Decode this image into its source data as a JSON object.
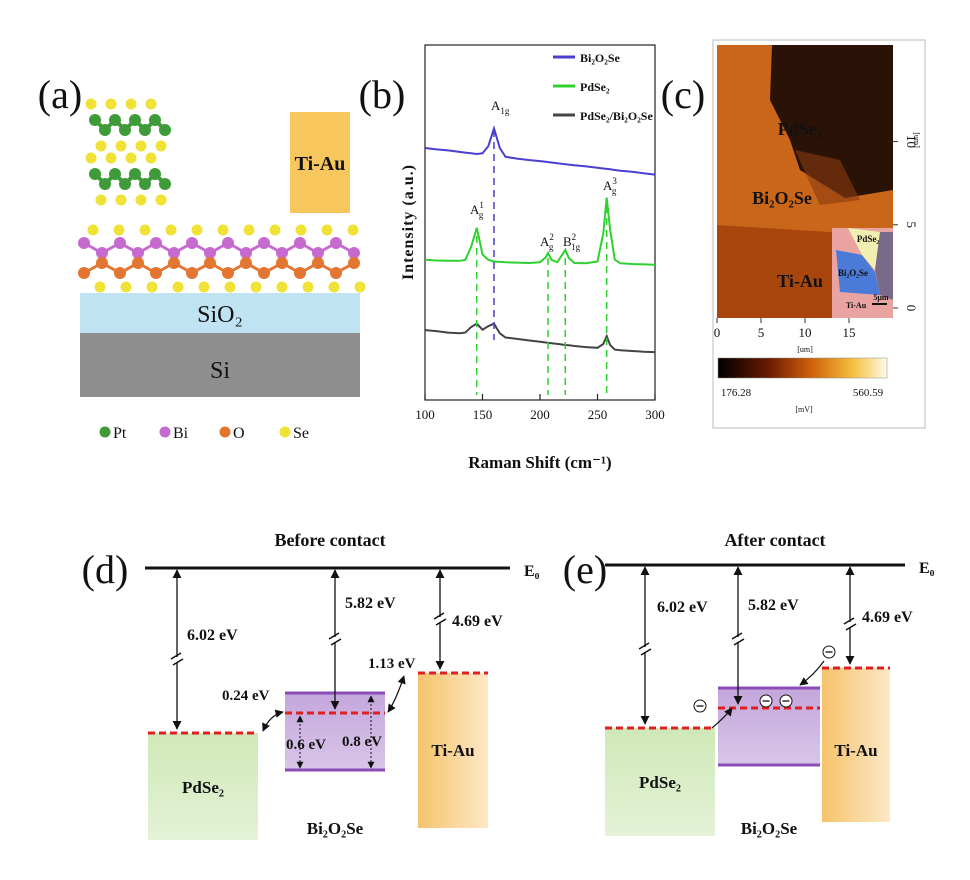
{
  "panels": {
    "a": {
      "label": "(a)",
      "electrode": "Ti-Au",
      "layers": [
        "SiO₂",
        "Si"
      ],
      "legend": [
        {
          "name": "Pt",
          "color": "#3f9a3a"
        },
        {
          "name": "Bi",
          "color": "#c66ad0"
        },
        {
          "name": "O",
          "color": "#e27530"
        },
        {
          "name": "Se",
          "color": "#f0e236"
        }
      ]
    },
    "b": {
      "label": "(b)",
      "type": "line",
      "xlabel": "Raman Shift (cm⁻¹)",
      "ylabel": "Intensity (a.u.)",
      "xlim": [
        100,
        300
      ],
      "ylim": [
        0,
        100
      ],
      "xticks": [
        100,
        150,
        200,
        250,
        300
      ],
      "x": [
        100,
        110,
        120,
        130,
        135,
        140,
        145,
        150,
        155,
        160,
        165,
        170,
        180,
        190,
        200,
        205,
        207,
        210,
        215,
        222,
        225,
        230,
        240,
        250,
        255,
        258,
        261,
        265,
        270,
        280,
        290,
        300
      ],
      "series": [
        {
          "name": "Bi₂O₂Se",
          "color": "#4a3fd0",
          "values": [
            71,
            70.6,
            70.3,
            69.9,
            69.7,
            69.5,
            69.3,
            69.5,
            71.5,
            76.5,
            71,
            68.5,
            68,
            67.6,
            67.3,
            67.1,
            67,
            66.9,
            66.7,
            66.4,
            66.3,
            66.1,
            65.8,
            65.4,
            65.2,
            65.1,
            65,
            64.8,
            64.6,
            64.3,
            63.9,
            63.5
          ]
        },
        {
          "name": "PdSe₂",
          "color": "#2fd02f",
          "values": [
            39.5,
            39.3,
            39.2,
            39.2,
            39.5,
            43,
            48.5,
            41,
            39.5,
            39,
            38.9,
            38.8,
            38.7,
            38.6,
            38.8,
            40.2,
            41.4,
            39.5,
            38.8,
            42.3,
            40,
            38.6,
            38.5,
            39,
            47,
            57,
            48,
            39.5,
            38.5,
            38.3,
            38.2,
            38.1
          ]
        },
        {
          "name": "PdSe₂/Bi₂O₂Se",
          "color": "#444444",
          "values": [
            19.7,
            19.4,
            19,
            18.8,
            19,
            20.5,
            21.5,
            19.8,
            20.8,
            21.5,
            18.8,
            17.6,
            17.2,
            16.8,
            16.4,
            16.2,
            16.1,
            16,
            15.8,
            15.5,
            15.4,
            15.2,
            14.9,
            14.7,
            15.8,
            18,
            15.5,
            14.2,
            14,
            13.8,
            13.6,
            13.5
          ]
        }
      ],
      "peaks": [
        {
          "x": 160,
          "color": "#4a3fd0",
          "label": {
            "base": "A",
            "sub": "1g"
          }
        },
        {
          "x": 145,
          "color": "#2fd02f",
          "label": {
            "base": "A",
            "sub": "g",
            "sup": "1"
          }
        },
        {
          "x": 207,
          "color": "#2fd02f",
          "label": {
            "base": "A",
            "sub": "g",
            "sup": "2"
          }
        },
        {
          "x": 222,
          "color": "#2fd02f",
          "label": {
            "base": "B",
            "sub": "1g",
            "sup": "2"
          }
        },
        {
          "x": 258,
          "color": "#2fd02f",
          "label": {
            "base": "A",
            "sub": "g",
            "sup": "3"
          }
        }
      ]
    },
    "c": {
      "label": "(c)",
      "xlim": [
        0,
        20
      ],
      "ylim": [
        -0.6,
        15.8
      ],
      "xticks": [
        0,
        5,
        10,
        15
      ],
      "yticks": [
        0,
        5,
        10
      ],
      "xlabel": "[um]",
      "ylabel": "[um]",
      "regions": [
        "PdSe₂",
        "Bi₂O₂Se",
        "Ti-Au"
      ],
      "inset": {
        "labels": [
          "PdSe₂",
          "Bi₂O₂Se",
          "Ti-Au"
        ],
        "scale": "5μm"
      },
      "colorbar": {
        "min": 176.28,
        "max": 560.59,
        "unit": "[mV]"
      }
    },
    "d": {
      "label": "(d)",
      "title": "Before contact",
      "level": "E₀",
      "gaps": [
        "6.02 eV",
        "5.82 eV",
        "4.69 eV"
      ],
      "offsets": [
        "1.13 eV",
        "0.24 eV"
      ],
      "bandgaps": [
        "0.6 eV",
        "0.8 eV"
      ],
      "materials": [
        "PdSe₂",
        "Bi₂O₂Se",
        "Ti-Au"
      ]
    },
    "e": {
      "label": "(e)",
      "title": "After contact",
      "level": "E₀",
      "gaps": [
        "6.02 eV",
        "5.82 eV",
        "4.69 eV"
      ],
      "materials": [
        "PdSe₂",
        "Bi₂O₂Se",
        "Ti-Au"
      ]
    }
  }
}
